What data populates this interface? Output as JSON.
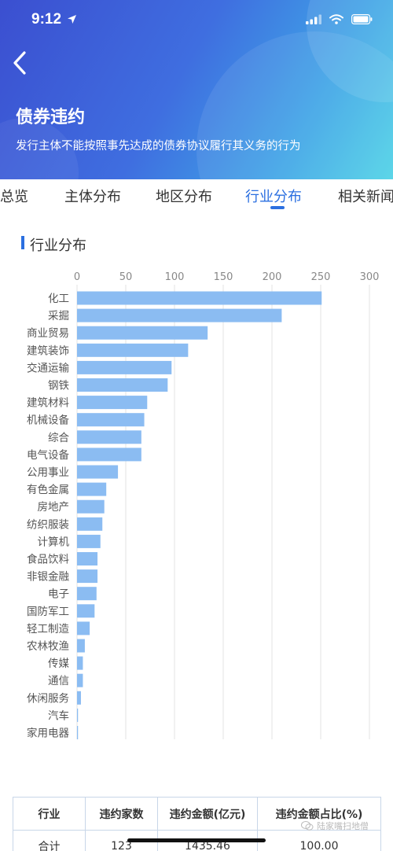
{
  "status_bar": {
    "time": "9:12"
  },
  "header": {
    "title": "债券违约",
    "subtitle": "发行主体不能按照事先达成的债券协议履行其义务的行为"
  },
  "tabs": [
    {
      "label": "违约总览",
      "active": false
    },
    {
      "label": "主体分布",
      "active": false
    },
    {
      "label": "地区分布",
      "active": false
    },
    {
      "label": "行业分布",
      "active": true
    },
    {
      "label": "相关新闻",
      "active": false
    }
  ],
  "section": {
    "title": "行业分布"
  },
  "chart_data": {
    "type": "bar",
    "orientation": "horizontal",
    "categories": [
      "化工",
      "采掘",
      "商业贸易",
      "建筑装饰",
      "交通运输",
      "钢铁",
      "建筑材料",
      "机械设备",
      "综合",
      "电气设备",
      "公用事业",
      "有色金属",
      "房地产",
      "纺织服装",
      "计算机",
      "食品饮料",
      "非银金融",
      "电子",
      "国防军工",
      "轻工制造",
      "农林牧渔",
      "传媒",
      "通信",
      "休闲服务",
      "汽车",
      "家用电器"
    ],
    "values": [
      251,
      210,
      134,
      114,
      97,
      93,
      72,
      69,
      66,
      66,
      42,
      30,
      28,
      26,
      24,
      21,
      21,
      20,
      18,
      13,
      8,
      6,
      6,
      4,
      1,
      1
    ],
    "xlim": [
      0,
      300
    ],
    "xticks": [
      "0",
      "50",
      "100",
      "150",
      "200",
      "250",
      "300"
    ],
    "grid": true,
    "bar_color": "#8bbcf2"
  },
  "table": {
    "headers": [
      "行业",
      "违约家数",
      "违约金额(亿元)",
      "违约金额占比(%)"
    ],
    "rows": [
      [
        "合计",
        "123",
        "1435.46",
        "100.00"
      ]
    ]
  },
  "watermark": {
    "text": "陆家嘴扫地僧"
  }
}
